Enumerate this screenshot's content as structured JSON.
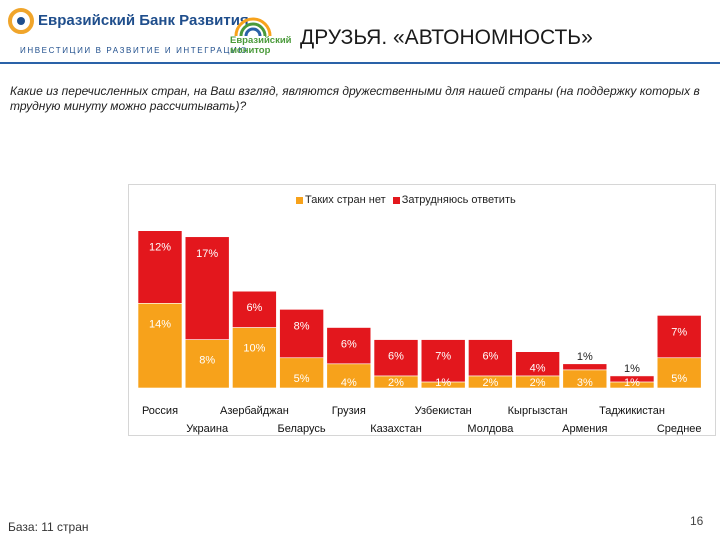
{
  "header": {
    "bank_name": "Евразийский Банк Развития",
    "bank_tagline": "ИНВЕСТИЦИИ В РАЗВИТИЕ И ИНТЕГРАЦИЮ",
    "monitor_line1": "Евразийский",
    "monitor_line2": "монитор",
    "title": "ДРУЗЬЯ. «АВТОНОМНОСТЬ»"
  },
  "question": "Какие из перечисленных стран, на Ваш взгляд, являются дружественными для нашей страны (на поддержку которых в трудную минуту можно рассчитывать)?",
  "footer": {
    "base": "База: 11 стран",
    "page": "16"
  },
  "colors": {
    "orange": "#f7a21b",
    "red": "#e3171d",
    "accent": "#2a62a8"
  },
  "chart_data": {
    "type": "bar",
    "stacked": true,
    "categories": [
      "Россия",
      "Украина",
      "Азербайджан",
      "Беларусь",
      "Грузия",
      "Казахстан",
      "Узбекистан",
      "Молдова",
      "Кыргызстан",
      "Армения",
      "Таджикистан",
      "Среднее"
    ],
    "series": [
      {
        "name": "Таких стран нет",
        "color": "#f7a21b",
        "values": [
          14,
          8,
          10,
          5,
          4,
          2,
          1,
          2,
          2,
          3,
          1,
          5
        ],
        "labels": [
          "14%",
          "8%",
          "10%",
          "5%",
          "4%",
          "2%",
          "1%",
          "2%",
          "2%",
          "3%",
          "1%",
          "5%"
        ]
      },
      {
        "name": "Затрудняюсь ответить",
        "color": "#e3171d",
        "values": [
          12,
          17,
          6,
          8,
          6,
          6,
          7,
          6,
          4,
          1,
          1,
          7
        ],
        "labels": [
          "12%",
          "17%",
          "6%",
          "8%",
          "6%",
          "6%",
          "7%",
          "6%",
          "4%",
          "1%",
          "1%",
          "7%"
        ]
      }
    ],
    "legend_position": "top",
    "grid": false
  }
}
